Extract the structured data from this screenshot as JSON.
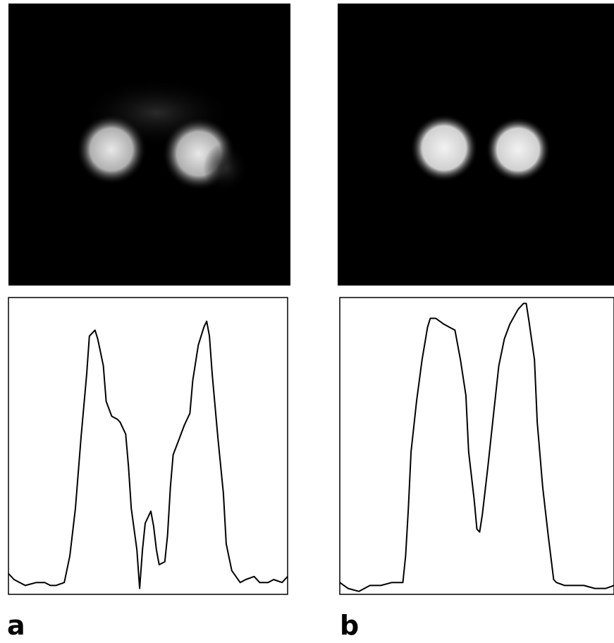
{
  "chart_data": [
    {
      "type": "line",
      "label": "a",
      "color": "#000000",
      "xlim": [
        0,
        100
      ],
      "ylim": [
        0,
        1
      ],
      "x": [
        0,
        2,
        6,
        10,
        13,
        15,
        17,
        20,
        22,
        24,
        26,
        28,
        29,
        31,
        32,
        34,
        35,
        37,
        39,
        40,
        42,
        43,
        44,
        46,
        47,
        48,
        49,
        51,
        52,
        53,
        54,
        56,
        57,
        58,
        59,
        61,
        63,
        65,
        66,
        68,
        70,
        71,
        72,
        73,
        75,
        77,
        78,
        80,
        83,
        85,
        88,
        90,
        93,
        95,
        98,
        100
      ],
      "values": [
        0.07,
        0.05,
        0.03,
        0.04,
        0.04,
        0.03,
        0.03,
        0.04,
        0.13,
        0.29,
        0.53,
        0.74,
        0.87,
        0.89,
        0.86,
        0.77,
        0.65,
        0.6,
        0.59,
        0.58,
        0.54,
        0.43,
        0.29,
        0.15,
        0.02,
        0.15,
        0.24,
        0.28,
        0.23,
        0.15,
        0.1,
        0.11,
        0.2,
        0.36,
        0.47,
        0.52,
        0.57,
        0.61,
        0.72,
        0.84,
        0.9,
        0.92,
        0.87,
        0.74,
        0.53,
        0.34,
        0.17,
        0.08,
        0.04,
        0.05,
        0.06,
        0.04,
        0.04,
        0.05,
        0.04,
        0.06
      ]
    },
    {
      "type": "line",
      "label": "b",
      "color": "#000000",
      "xlim": [
        0,
        100
      ],
      "ylim": [
        0,
        1
      ],
      "x": [
        0,
        3,
        7,
        11,
        15,
        19,
        23,
        24,
        25,
        26,
        28,
        30,
        32,
        33,
        35,
        38,
        42,
        44,
        46,
        47,
        49,
        50,
        51,
        52,
        54,
        56,
        58,
        60,
        62,
        65,
        67,
        68,
        69,
        71,
        72,
        74,
        76,
        78,
        79,
        82,
        86,
        89,
        93,
        97,
        100
      ],
      "values": [
        0.04,
        0.02,
        0.01,
        0.03,
        0.03,
        0.04,
        0.04,
        0.13,
        0.29,
        0.48,
        0.65,
        0.79,
        0.9,
        0.93,
        0.93,
        0.91,
        0.89,
        0.79,
        0.67,
        0.48,
        0.32,
        0.22,
        0.21,
        0.27,
        0.43,
        0.6,
        0.77,
        0.86,
        0.91,
        0.96,
        0.98,
        0.98,
        0.92,
        0.79,
        0.58,
        0.36,
        0.2,
        0.05,
        0.04,
        0.03,
        0.03,
        0.03,
        0.02,
        0.02,
        0.03
      ]
    }
  ]
}
